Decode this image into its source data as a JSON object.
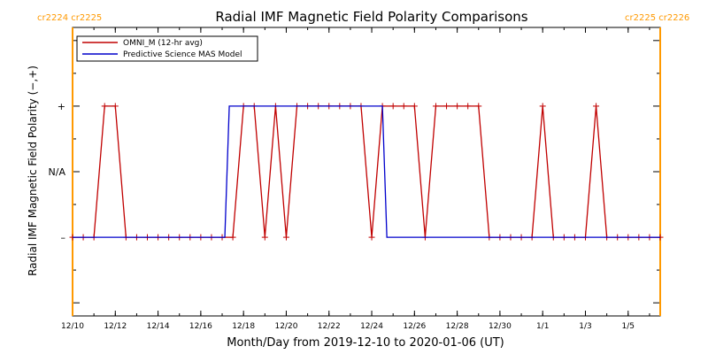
{
  "chart_data": {
    "type": "line",
    "title": "Radial IMF Magnetic Field Polarity Comparisons",
    "xlabel": "Month/Day from 2019-12-10 to 2020-01-06 (UT)",
    "ylabel": "Radial IMF Magnetic Field Polarity (−,+)",
    "y_tick_labels": [
      {
        "value": 1,
        "label": "+"
      },
      {
        "value": 0,
        "label": "N/A"
      },
      {
        "value": -1,
        "label": "–"
      }
    ],
    "ylim": [
      -2.2,
      2.2
    ],
    "xlim": [
      "2019-12-10T00:00",
      "2020-01-06T12:00"
    ],
    "x_ticks": [
      {
        "date": "2019-12-10",
        "label": "12/10"
      },
      {
        "date": "2019-12-12",
        "label": "12/12"
      },
      {
        "date": "2019-12-14",
        "label": "12/14"
      },
      {
        "date": "2019-12-16",
        "label": "12/16"
      },
      {
        "date": "2019-12-18",
        "label": "12/18"
      },
      {
        "date": "2019-12-20",
        "label": "12/20"
      },
      {
        "date": "2019-12-22",
        "label": "12/22"
      },
      {
        "date": "2019-12-24",
        "label": "12/24"
      },
      {
        "date": "2019-12-26",
        "label": "12/26"
      },
      {
        "date": "2019-12-28",
        "label": "12/28"
      },
      {
        "date": "2019-12-30",
        "label": "12/30"
      },
      {
        "date": "2020-01-01",
        "label": "1/1"
      },
      {
        "date": "2020-01-03",
        "label": "1/3"
      },
      {
        "date": "2020-01-05",
        "label": "1/5"
      }
    ],
    "carrington_markers": [
      {
        "date": "2019-12-10T00:00",
        "label": "cr2224  cr2225",
        "color": "#ff9900"
      },
      {
        "date": "2020-01-06T12:00",
        "label": "cr2225  cr2226",
        "color": "#ff9900"
      }
    ],
    "legend_placement": "top-left",
    "series": [
      {
        "name": "OMNI_M (12-hr avg)",
        "color": "#c00000",
        "marker": "+",
        "points": [
          [
            "2019-12-10T00:00",
            -1
          ],
          [
            "2019-12-10T12:00",
            -1
          ],
          [
            "2019-12-11T00:00",
            -1
          ],
          [
            "2019-12-11T12:00",
            1
          ],
          [
            "2019-12-12T00:00",
            1
          ],
          [
            "2019-12-12T12:00",
            -1
          ],
          [
            "2019-12-13T00:00",
            -1
          ],
          [
            "2019-12-13T12:00",
            -1
          ],
          [
            "2019-12-14T00:00",
            -1
          ],
          [
            "2019-12-14T12:00",
            -1
          ],
          [
            "2019-12-15T00:00",
            -1
          ],
          [
            "2019-12-15T12:00",
            -1
          ],
          [
            "2019-12-16T00:00",
            -1
          ],
          [
            "2019-12-16T12:00",
            -1
          ],
          [
            "2019-12-17T00:00",
            -1
          ],
          [
            "2019-12-17T12:00",
            -1
          ],
          [
            "2019-12-18T00:00",
            1
          ],
          [
            "2019-12-18T12:00",
            1
          ],
          [
            "2019-12-19T00:00",
            -1
          ],
          [
            "2019-12-19T12:00",
            1
          ],
          [
            "2019-12-20T00:00",
            -1
          ],
          [
            "2019-12-20T12:00",
            1
          ],
          [
            "2019-12-21T00:00",
            1
          ],
          [
            "2019-12-21T12:00",
            1
          ],
          [
            "2019-12-22T00:00",
            1
          ],
          [
            "2019-12-22T12:00",
            1
          ],
          [
            "2019-12-23T00:00",
            1
          ],
          [
            "2019-12-23T12:00",
            1
          ],
          [
            "2019-12-24T00:00",
            -1
          ],
          [
            "2019-12-24T12:00",
            1
          ],
          [
            "2019-12-25T00:00",
            1
          ],
          [
            "2019-12-25T12:00",
            1
          ],
          [
            "2019-12-26T00:00",
            1
          ],
          [
            "2019-12-26T12:00",
            -1
          ],
          [
            "2019-12-27T00:00",
            1
          ],
          [
            "2019-12-27T12:00",
            1
          ],
          [
            "2019-12-28T00:00",
            1
          ],
          [
            "2019-12-28T12:00",
            1
          ],
          [
            "2019-12-29T00:00",
            1
          ],
          [
            "2019-12-29T12:00",
            -1
          ],
          [
            "2019-12-30T00:00",
            -1
          ],
          [
            "2019-12-30T12:00",
            -1
          ],
          [
            "2019-12-31T00:00",
            -1
          ],
          [
            "2019-12-31T12:00",
            -1
          ],
          [
            "2020-01-01T00:00",
            1
          ],
          [
            "2020-01-01T12:00",
            -1
          ],
          [
            "2020-01-02T00:00",
            -1
          ],
          [
            "2020-01-02T12:00",
            -1
          ],
          [
            "2020-01-03T00:00",
            -1
          ],
          [
            "2020-01-03T12:00",
            1
          ],
          [
            "2020-01-04T00:00",
            -1
          ],
          [
            "2020-01-04T12:00",
            -1
          ],
          [
            "2020-01-05T00:00",
            -1
          ],
          [
            "2020-01-05T12:00",
            -1
          ],
          [
            "2020-01-06T00:00",
            -1
          ],
          [
            "2020-01-06T12:00",
            -1
          ]
        ]
      },
      {
        "name": "Predictive Science MAS Model",
        "color": "#0000cc",
        "marker": "none",
        "points": [
          [
            "2019-12-10T00:00",
            -1
          ],
          [
            "2019-12-17T03:00",
            -1
          ],
          [
            "2019-12-17T08:00",
            1
          ],
          [
            "2019-12-24T12:00",
            1
          ],
          [
            "2019-12-24T17:00",
            -1
          ],
          [
            "2020-01-06T12:00",
            -1
          ]
        ]
      }
    ]
  }
}
